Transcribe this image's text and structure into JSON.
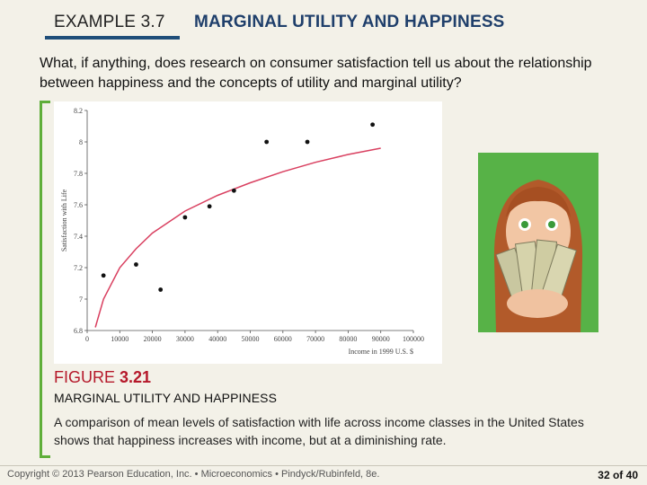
{
  "header": {
    "example_label": "EXAMPLE 3.7",
    "title": "MARGINAL UTILITY AND HAPPINESS"
  },
  "question": "What, if anything, does research on consumer satisfaction tell us about the relationship between happiness and the concepts of utility and marginal utility?",
  "figure": {
    "label_prefix": "FIGURE",
    "number": "3.21",
    "title": "MARGINAL UTILITY AND HAPPINESS",
    "caption": "A comparison of mean levels of satisfaction with life across income classes in the United States shows that happiness increases with income, but at a diminishing rate."
  },
  "photo": {
    "icon": "woman-holding-money-photo"
  },
  "colors": {
    "header_title": "#1f3f6b",
    "header_rule": "#1f4e79",
    "accent_green": "#5fae3a",
    "figure_red": "#b5182a",
    "curve": "#d94060",
    "points": "#111111"
  },
  "footer": {
    "copyright": "Copyright © 2013 Pearson Education, Inc. • Microeconomics • Pindyck/Rubinfeld, 8e.",
    "page_current": "32",
    "page_sep": "of",
    "page_total": "40"
  },
  "chart_data": {
    "type": "scatter",
    "xlabel": "Income in 1999 U.S. $",
    "ylabel": "Satisfaction with Life",
    "xlim": [
      0,
      100000
    ],
    "ylim": [
      6.8,
      8.2
    ],
    "x_ticks": [
      "0",
      "10000",
      "20000",
      "30000",
      "40000",
      "50000",
      "60000",
      "70000",
      "80000",
      "90000",
      "100000"
    ],
    "y_ticks": [
      "6.8",
      "7",
      "7.2",
      "7.4",
      "7.6",
      "7.8",
      "8",
      "8.2"
    ],
    "points": [
      {
        "x": 5000,
        "y": 7.15
      },
      {
        "x": 15000,
        "y": 7.22
      },
      {
        "x": 22500,
        "y": 7.06
      },
      {
        "x": 30000,
        "y": 7.52
      },
      {
        "x": 37500,
        "y": 7.59
      },
      {
        "x": 45000,
        "y": 7.69
      },
      {
        "x": 55000,
        "y": 8.0
      },
      {
        "x": 67500,
        "y": 8.0
      },
      {
        "x": 87500,
        "y": 8.11
      }
    ],
    "fit_curve": [
      {
        "x": 2500,
        "y": 6.82
      },
      {
        "x": 5000,
        "y": 7.0
      },
      {
        "x": 10000,
        "y": 7.2
      },
      {
        "x": 15000,
        "y": 7.32
      },
      {
        "x": 20000,
        "y": 7.42
      },
      {
        "x": 30000,
        "y": 7.56
      },
      {
        "x": 40000,
        "y": 7.66
      },
      {
        "x": 50000,
        "y": 7.74
      },
      {
        "x": 60000,
        "y": 7.81
      },
      {
        "x": 70000,
        "y": 7.87
      },
      {
        "x": 80000,
        "y": 7.92
      },
      {
        "x": 90000,
        "y": 7.96
      }
    ],
    "grid": false
  }
}
